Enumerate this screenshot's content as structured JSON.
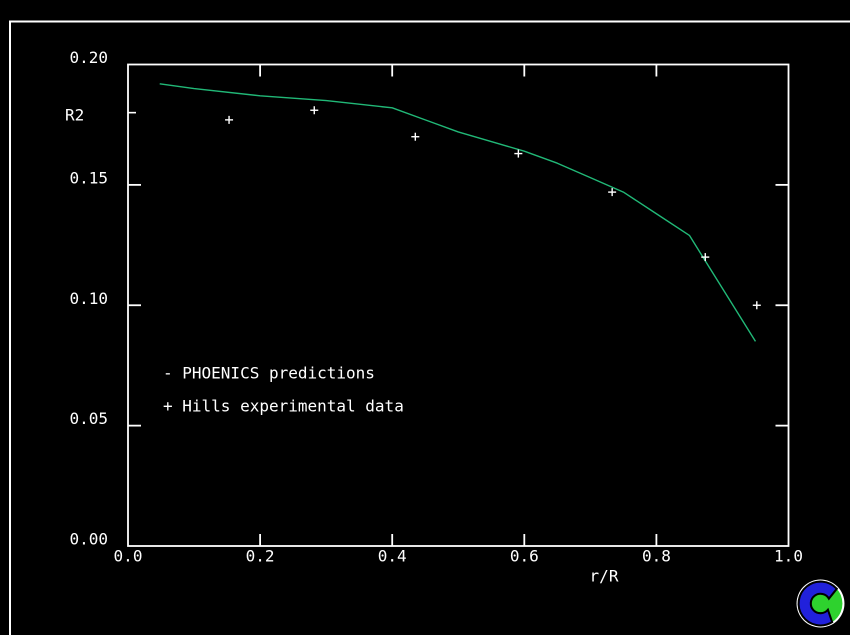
{
  "window": {
    "bg_color": "#000000",
    "frame_color": "#ffffff"
  },
  "chart_data": {
    "type": "line",
    "title": "",
    "xlabel": "r/R",
    "ylabel": "R2",
    "xlim": [
      0.0,
      1.0
    ],
    "ylim": [
      0.0,
      0.2
    ],
    "grid": false,
    "axis_color": "#ffffff",
    "x_ticks": [
      0.0,
      0.2,
      0.4,
      0.6,
      0.8,
      1.0
    ],
    "x_tick_labels": [
      "0.0",
      "0.2",
      "0.4",
      "0.6",
      "0.8",
      "1.0"
    ],
    "y_ticks": [
      0.0,
      0.05,
      0.1,
      0.15,
      0.2
    ],
    "y_tick_labels": [
      "0.00",
      "0.05",
      "0.10",
      "0.15",
      "0.20"
    ],
    "y_minor_ticks": [
      0.18
    ],
    "series": [
      {
        "name": "PHOENICS predictions",
        "type": "line",
        "symbol": "-",
        "color": "#21b877",
        "x": [
          0.048,
          0.1,
          0.2,
          0.3,
          0.4,
          0.45,
          0.5,
          0.55,
          0.6,
          0.65,
          0.7,
          0.75,
          0.8,
          0.85,
          0.95
        ],
        "y": [
          0.192,
          0.19,
          0.187,
          0.185,
          0.182,
          0.177,
          0.172,
          0.168,
          0.164,
          0.159,
          0.153,
          0.147,
          0.138,
          0.129,
          0.085
        ]
      },
      {
        "name": "Hills experimental data",
        "type": "scatter",
        "symbol": "+",
        "color": "#ffffff",
        "x": [
          0.153,
          0.282,
          0.435,
          0.591,
          0.733,
          0.874,
          0.952
        ],
        "y": [
          0.177,
          0.181,
          0.17,
          0.163,
          0.147,
          0.12,
          0.1
        ]
      }
    ],
    "legend": [
      {
        "symbol": "-",
        "label": "PHOENICS predictions"
      },
      {
        "symbol": "+",
        "label": "Hills experimental data"
      }
    ],
    "legend_position": "inside-left-middle"
  },
  "logo": {
    "name": "CHAM logo",
    "blue": "#2121db",
    "green": "#2ed22e",
    "outline": "#ffffff"
  }
}
